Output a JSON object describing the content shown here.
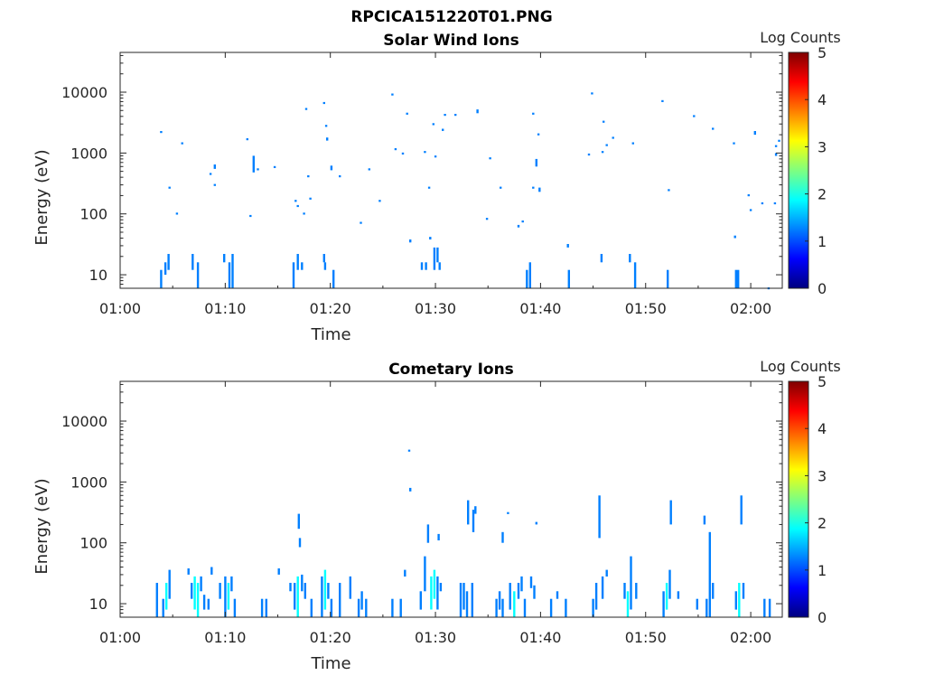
{
  "figure_title": "RPCICA151220T01.PNG",
  "colors": {
    "colormap": [
      "#00007f",
      "#0000ff",
      "#007fff",
      "#00ffff",
      "#7fff7f",
      "#ffff00",
      "#ff7f00",
      "#ff0000",
      "#7f0000"
    ]
  },
  "chart_data": [
    {
      "type": "heatmap",
      "title": "Solar Wind Ions",
      "xlabel": "Time",
      "ylabel": "Energy (eV)",
      "x_ticks": [
        "01:00",
        "01:10",
        "01:20",
        "01:30",
        "01:40",
        "01:50",
        "02:00"
      ],
      "y_ticks": [
        "10",
        "100",
        "1000",
        "10000"
      ],
      "xlim_minutes": [
        60,
        123
      ],
      "ylim": [
        6,
        45000
      ],
      "yscale": "log",
      "colorbar": {
        "label": "Log Counts",
        "ticks": [
          "0",
          "1",
          "2",
          "3",
          "4",
          "5"
        ],
        "range": [
          0,
          5
        ]
      },
      "cells": [
        [
          63.8,
          6,
          12,
          1
        ],
        [
          64.2,
          10,
          16,
          1
        ],
        [
          64.5,
          12,
          22,
          1
        ],
        [
          63.8,
          2200,
          2300,
          1
        ],
        [
          64.6,
          270,
          280,
          1
        ],
        [
          65.3,
          100,
          105,
          1
        ],
        [
          65.8,
          1450,
          1500,
          1
        ],
        [
          66.8,
          12,
          22,
          1
        ],
        [
          67.3,
          6,
          16,
          1
        ],
        [
          68.5,
          450,
          470,
          1
        ],
        [
          68.9,
          300,
          310,
          1
        ],
        [
          68.9,
          550,
          650,
          1
        ],
        [
          69.8,
          16,
          22,
          1
        ],
        [
          70.3,
          6,
          16,
          1
        ],
        [
          70.6,
          6,
          22,
          1
        ],
        [
          72.0,
          1700,
          1750,
          1
        ],
        [
          72.3,
          92,
          96,
          1
        ],
        [
          72.6,
          480,
          900,
          1
        ],
        [
          73.0,
          540,
          560,
          1
        ],
        [
          74.6,
          590,
          610,
          1
        ],
        [
          76.4,
          6,
          16,
          1
        ],
        [
          76.6,
          165,
          170,
          1
        ],
        [
          76.8,
          12,
          22,
          1
        ],
        [
          76.8,
          135,
          140,
          1
        ],
        [
          77.2,
          12,
          16,
          1
        ],
        [
          77.4,
          100,
          105,
          1
        ],
        [
          77.6,
          5300,
          5500,
          1
        ],
        [
          77.8,
          420,
          430,
          1
        ],
        [
          78.0,
          180,
          185,
          1
        ],
        [
          79.3,
          6700,
          6900,
          1
        ],
        [
          79.3,
          16,
          22,
          1
        ],
        [
          79.4,
          12,
          16,
          1
        ],
        [
          79.5,
          2800,
          2900,
          1
        ],
        [
          79.6,
          1600,
          1800,
          1
        ],
        [
          80.0,
          520,
          620,
          1
        ],
        [
          80.2,
          6,
          12,
          1
        ],
        [
          80.8,
          420,
          430,
          1
        ],
        [
          82.8,
          70,
          74,
          1
        ],
        [
          83.6,
          540,
          560,
          1
        ],
        [
          84.6,
          165,
          170,
          1
        ],
        [
          85.8,
          9300,
          9500,
          1
        ],
        [
          86.1,
          1150,
          1200,
          1
        ],
        [
          86.8,
          1000,
          1020,
          1
        ],
        [
          87.2,
          4500,
          4600,
          1
        ],
        [
          87.5,
          34,
          38,
          1
        ],
        [
          88.6,
          12,
          16,
          1
        ],
        [
          88.9,
          1050,
          1080,
          1
        ],
        [
          89.0,
          12,
          16,
          1
        ],
        [
          89.3,
          270,
          280,
          1
        ],
        [
          89.4,
          38,
          42,
          1
        ],
        [
          89.7,
          3000,
          3100,
          1
        ],
        [
          89.9,
          890,
          910,
          1
        ],
        [
          89.8,
          12,
          28,
          1
        ],
        [
          90.1,
          16,
          28,
          1
        ],
        [
          90.3,
          12,
          16,
          1
        ],
        [
          90.6,
          2300,
          2500,
          1
        ],
        [
          90.8,
          4300,
          4400,
          1
        ],
        [
          91.8,
          4300,
          4400,
          1
        ],
        [
          93.9,
          4500,
          5200,
          1
        ],
        [
          94.8,
          82,
          86,
          1
        ],
        [
          95.1,
          830,
          850,
          1
        ],
        [
          96.1,
          270,
          280,
          1
        ],
        [
          97.8,
          60,
          66,
          1
        ],
        [
          98.2,
          75,
          78,
          1
        ],
        [
          98.6,
          6,
          12,
          1
        ],
        [
          98.9,
          6,
          16,
          1
        ],
        [
          99.2,
          4500,
          4600,
          1
        ],
        [
          99.2,
          270,
          280,
          1
        ],
        [
          99.5,
          600,
          800,
          1
        ],
        [
          99.7,
          2000,
          2100,
          1
        ],
        [
          99.8,
          230,
          270,
          1
        ],
        [
          102.5,
          28,
          32,
          1
        ],
        [
          102.6,
          6,
          12,
          1
        ],
        [
          104.5,
          950,
          980,
          1
        ],
        [
          104.8,
          9700,
          9900,
          1
        ],
        [
          105.8,
          1050,
          1080,
          1
        ],
        [
          105.7,
          16,
          22,
          1
        ],
        [
          105.9,
          3300,
          3400,
          1
        ],
        [
          106.2,
          1350,
          1400,
          1
        ],
        [
          106.8,
          1800,
          1850,
          1
        ],
        [
          108.4,
          16,
          22,
          1
        ],
        [
          108.7,
          1450,
          1500,
          1
        ],
        [
          108.9,
          6,
          16,
          1
        ],
        [
          111.5,
          7200,
          7400,
          1
        ],
        [
          112.0,
          6,
          12,
          1
        ],
        [
          112.1,
          250,
          255,
          1
        ],
        [
          114.5,
          4100,
          4200,
          1
        ],
        [
          116.3,
          2500,
          2600,
          1
        ],
        [
          118.3,
          1450,
          1500,
          1
        ],
        [
          118.4,
          40,
          44,
          1
        ],
        [
          118.5,
          6,
          12,
          1
        ],
        [
          118.7,
          6,
          12,
          1
        ],
        [
          119.7,
          200,
          210,
          1
        ],
        [
          119.9,
          115,
          120,
          1
        ],
        [
          120.3,
          2000,
          2300,
          1
        ],
        [
          121.0,
          150,
          155,
          1
        ],
        [
          121.6,
          6,
          6.2,
          1
        ],
        [
          122.2,
          150,
          155,
          1
        ],
        [
          122.3,
          900,
          1000,
          1
        ],
        [
          122.3,
          1300,
          1350,
          1
        ],
        [
          122.6,
          1600,
          1650,
          1
        ]
      ]
    },
    {
      "type": "heatmap",
      "title": "Cometary Ions",
      "xlabel": "Time",
      "ylabel": "Energy (eV)",
      "x_ticks": [
        "01:00",
        "01:10",
        "01:20",
        "01:30",
        "01:40",
        "01:50",
        "02:00"
      ],
      "y_ticks": [
        "10",
        "100",
        "1000",
        "10000"
      ],
      "xlim_minutes": [
        60,
        123
      ],
      "ylim": [
        6,
        45000
      ],
      "yscale": "log",
      "colorbar": {
        "label": "Log Counts",
        "ticks": [
          "0",
          "1",
          "2",
          "3",
          "4",
          "5"
        ],
        "range": [
          0,
          5
        ]
      },
      "cells": [
        [
          63.4,
          6,
          22,
          1
        ],
        [
          64.0,
          6,
          12,
          1.2
        ],
        [
          64.3,
          8,
          22,
          1.8
        ],
        [
          64.6,
          12,
          36,
          1.3
        ],
        [
          66.4,
          30,
          38,
          1
        ],
        [
          66.7,
          12,
          22,
          1
        ],
        [
          67.0,
          8,
          28,
          1.6
        ],
        [
          67.3,
          6,
          22,
          2.0
        ],
        [
          67.6,
          16,
          28,
          1.2
        ],
        [
          67.9,
          8,
          14,
          1
        ],
        [
          68.3,
          8,
          12,
          1
        ],
        [
          68.6,
          30,
          40,
          1
        ],
        [
          69.4,
          12,
          22,
          1
        ],
        [
          69.9,
          6,
          28,
          1.5
        ],
        [
          70.2,
          8,
          22,
          2.0
        ],
        [
          70.5,
          16,
          28,
          1.3
        ],
        [
          70.8,
          6,
          12,
          1
        ],
        [
          73.4,
          6,
          12,
          1
        ],
        [
          73.8,
          6,
          12,
          1
        ],
        [
          75.0,
          30,
          38,
          1
        ],
        [
          76.1,
          16,
          22,
          1
        ],
        [
          76.5,
          8,
          22,
          1.5
        ],
        [
          76.8,
          6,
          28,
          1.8
        ],
        [
          76.9,
          170,
          300,
          1
        ],
        [
          77.0,
          85,
          120,
          1
        ],
        [
          77.2,
          16,
          30,
          1.2
        ],
        [
          77.5,
          12,
          22,
          1
        ],
        [
          78.1,
          6,
          12,
          1
        ],
        [
          79.1,
          6,
          28,
          1.3
        ],
        [
          79.4,
          8,
          36,
          1.8
        ],
        [
          79.7,
          12,
          22,
          1.2
        ],
        [
          80.0,
          6,
          12,
          1
        ],
        [
          80.8,
          6,
          22,
          1
        ],
        [
          81.8,
          12,
          28,
          1
        ],
        [
          82.6,
          6,
          12,
          1
        ],
        [
          82.9,
          8,
          16,
          1
        ],
        [
          83.3,
          6,
          12,
          1
        ],
        [
          85.8,
          6,
          12,
          1
        ],
        [
          86.6,
          6,
          12,
          1
        ],
        [
          87.0,
          28,
          36,
          1
        ],
        [
          87.4,
          3200,
          3400,
          1
        ],
        [
          87.5,
          700,
          800,
          1
        ],
        [
          88.5,
          8,
          16,
          1.4
        ],
        [
          88.9,
          16,
          60,
          1
        ],
        [
          89.2,
          100,
          200,
          1
        ],
        [
          89.5,
          8,
          28,
          1.8
        ],
        [
          89.8,
          12,
          36,
          2.0
        ],
        [
          90.1,
          8,
          28,
          1.2
        ],
        [
          90.4,
          16,
          22,
          1
        ],
        [
          90.2,
          110,
          140,
          1
        ],
        [
          92.3,
          6,
          22,
          1.2
        ],
        [
          92.6,
          8,
          22,
          1.5
        ],
        [
          92.9,
          6,
          16,
          1.2
        ],
        [
          93.0,
          200,
          500,
          1
        ],
        [
          93.4,
          6,
          22,
          1
        ],
        [
          93.5,
          150,
          350,
          1
        ],
        [
          93.7,
          300,
          400,
          1
        ],
        [
          95.7,
          6,
          12,
          1.5
        ],
        [
          96.0,
          8,
          16,
          1.2
        ],
        [
          96.3,
          6,
          12,
          1
        ],
        [
          96.3,
          100,
          150,
          1
        ],
        [
          96.8,
          300,
          320,
          1
        ],
        [
          97.0,
          8,
          22,
          1
        ],
        [
          97.4,
          6,
          16,
          1.6
        ],
        [
          97.8,
          12,
          22,
          1
        ],
        [
          98.1,
          16,
          28,
          1.2
        ],
        [
          98.4,
          6,
          12,
          1
        ],
        [
          99.0,
          18,
          28,
          1
        ],
        [
          99.3,
          12,
          20,
          1
        ],
        [
          99.5,
          200,
          220,
          1
        ],
        [
          100.9,
          6,
          12,
          1
        ],
        [
          101.5,
          12,
          16,
          1
        ],
        [
          102.3,
          6,
          12,
          1
        ],
        [
          104.9,
          6,
          12,
          1
        ],
        [
          105.2,
          8,
          22,
          1.5
        ],
        [
          105.5,
          120,
          600,
          1
        ],
        [
          105.8,
          12,
          28,
          1.2
        ],
        [
          106.2,
          28,
          36,
          1
        ],
        [
          107.9,
          12,
          22,
          1.3
        ],
        [
          108.2,
          6,
          16,
          1.8
        ],
        [
          108.5,
          8,
          60,
          1.2
        ],
        [
          109.0,
          12,
          22,
          1
        ],
        [
          111.6,
          6,
          16,
          1.4
        ],
        [
          111.9,
          8,
          22,
          1.7
        ],
        [
          112.2,
          12,
          36,
          1.2
        ],
        [
          112.3,
          200,
          500,
          1
        ],
        [
          113.0,
          12,
          16,
          1
        ],
        [
          114.8,
          8,
          12,
          1
        ],
        [
          115.5,
          200,
          280,
          1
        ],
        [
          115.7,
          6,
          12,
          1
        ],
        [
          116.0,
          6,
          150,
          1
        ],
        [
          116.3,
          12,
          22,
          1
        ],
        [
          118.5,
          8,
          16,
          1.3
        ],
        [
          118.8,
          6,
          22,
          1.6
        ],
        [
          119.0,
          200,
          600,
          1
        ],
        [
          119.2,
          12,
          22,
          1
        ],
        [
          121.2,
          6,
          12,
          1
        ],
        [
          121.7,
          6,
          12,
          1
        ]
      ]
    }
  ]
}
